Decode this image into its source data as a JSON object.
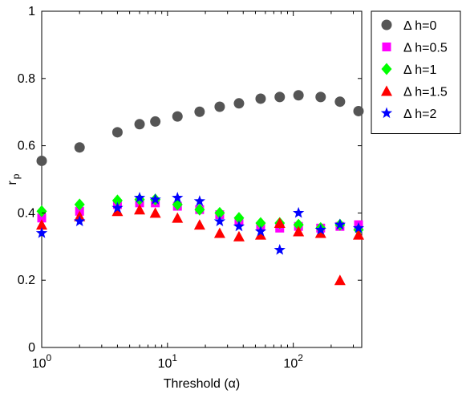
{
  "chart_data": {
    "type": "scatter",
    "xscale": "log",
    "xlim": [
      1,
      350
    ],
    "ylim": [
      0,
      1
    ],
    "xlabel": "Threshold (α)",
    "ylabel_main": "r",
    "ylabel_sub": "p",
    "y_ticks": [
      "0",
      "0.2",
      "0.4",
      "0.6",
      "0.8",
      "1"
    ],
    "x_ticks": [
      {
        "base": "10",
        "exp": "0",
        "value": 1
      },
      {
        "base": "10",
        "exp": "1",
        "value": 10
      },
      {
        "base": "10",
        "exp": "2",
        "value": 100
      }
    ],
    "legend_position": "outside-top-right",
    "grid": false,
    "series": [
      {
        "name": "Δ h=0",
        "marker": "circle",
        "color": "#555555",
        "points": [
          [
            1,
            0.555
          ],
          [
            2,
            0.595
          ],
          [
            4,
            0.64
          ],
          [
            6,
            0.664
          ],
          [
            8,
            0.672
          ],
          [
            12,
            0.687
          ],
          [
            18,
            0.701
          ],
          [
            26,
            0.716
          ],
          [
            37,
            0.726
          ],
          [
            55,
            0.74
          ],
          [
            78,
            0.745
          ],
          [
            110,
            0.75
          ],
          [
            165,
            0.745
          ],
          [
            235,
            0.731
          ],
          [
            330,
            0.703
          ]
        ]
      },
      {
        "name": "Δ h=0.5",
        "marker": "square",
        "color": "#ff00ff",
        "points": [
          [
            1,
            0.385
          ],
          [
            2,
            0.405
          ],
          [
            4,
            0.425
          ],
          [
            6,
            0.43
          ],
          [
            8,
            0.43
          ],
          [
            12,
            0.42
          ],
          [
            18,
            0.41
          ],
          [
            26,
            0.395
          ],
          [
            37,
            0.375
          ],
          [
            55,
            0.36
          ],
          [
            78,
            0.355
          ],
          [
            110,
            0.36
          ],
          [
            165,
            0.355
          ],
          [
            235,
            0.36
          ],
          [
            330,
            0.365
          ]
        ]
      },
      {
        "name": "Δ h=1",
        "marker": "diamond",
        "color": "#00ff00",
        "points": [
          [
            1,
            0.405
          ],
          [
            2,
            0.425
          ],
          [
            4,
            0.437
          ],
          [
            6,
            0.44
          ],
          [
            8,
            0.44
          ],
          [
            12,
            0.425
          ],
          [
            18,
            0.41
          ],
          [
            26,
            0.4
          ],
          [
            37,
            0.385
          ],
          [
            55,
            0.37
          ],
          [
            78,
            0.37
          ],
          [
            110,
            0.365
          ],
          [
            165,
            0.355
          ],
          [
            235,
            0.365
          ],
          [
            330,
            0.35
          ]
        ]
      },
      {
        "name": "Δ h=1.5",
        "marker": "triangle",
        "color": "#ff0000",
        "points": [
          [
            1,
            0.365
          ],
          [
            2,
            0.39
          ],
          [
            4,
            0.405
          ],
          [
            6,
            0.41
          ],
          [
            8,
            0.4
          ],
          [
            12,
            0.385
          ],
          [
            18,
            0.365
          ],
          [
            26,
            0.34
          ],
          [
            37,
            0.33
          ],
          [
            55,
            0.335
          ],
          [
            78,
            0.37
          ],
          [
            110,
            0.345
          ],
          [
            165,
            0.34
          ],
          [
            235,
            0.2
          ],
          [
            330,
            0.335
          ]
        ]
      },
      {
        "name": "Δ h=2",
        "marker": "star",
        "color": "#0000ff",
        "points": [
          [
            1,
            0.34
          ],
          [
            2,
            0.375
          ],
          [
            4,
            0.415
          ],
          [
            6,
            0.445
          ],
          [
            8,
            0.44
          ],
          [
            12,
            0.445
          ],
          [
            18,
            0.435
          ],
          [
            26,
            0.375
          ],
          [
            37,
            0.36
          ],
          [
            55,
            0.345
          ],
          [
            78,
            0.29
          ],
          [
            110,
            0.4
          ],
          [
            165,
            0.35
          ],
          [
            235,
            0.365
          ],
          [
            330,
            0.355
          ]
        ]
      }
    ]
  }
}
